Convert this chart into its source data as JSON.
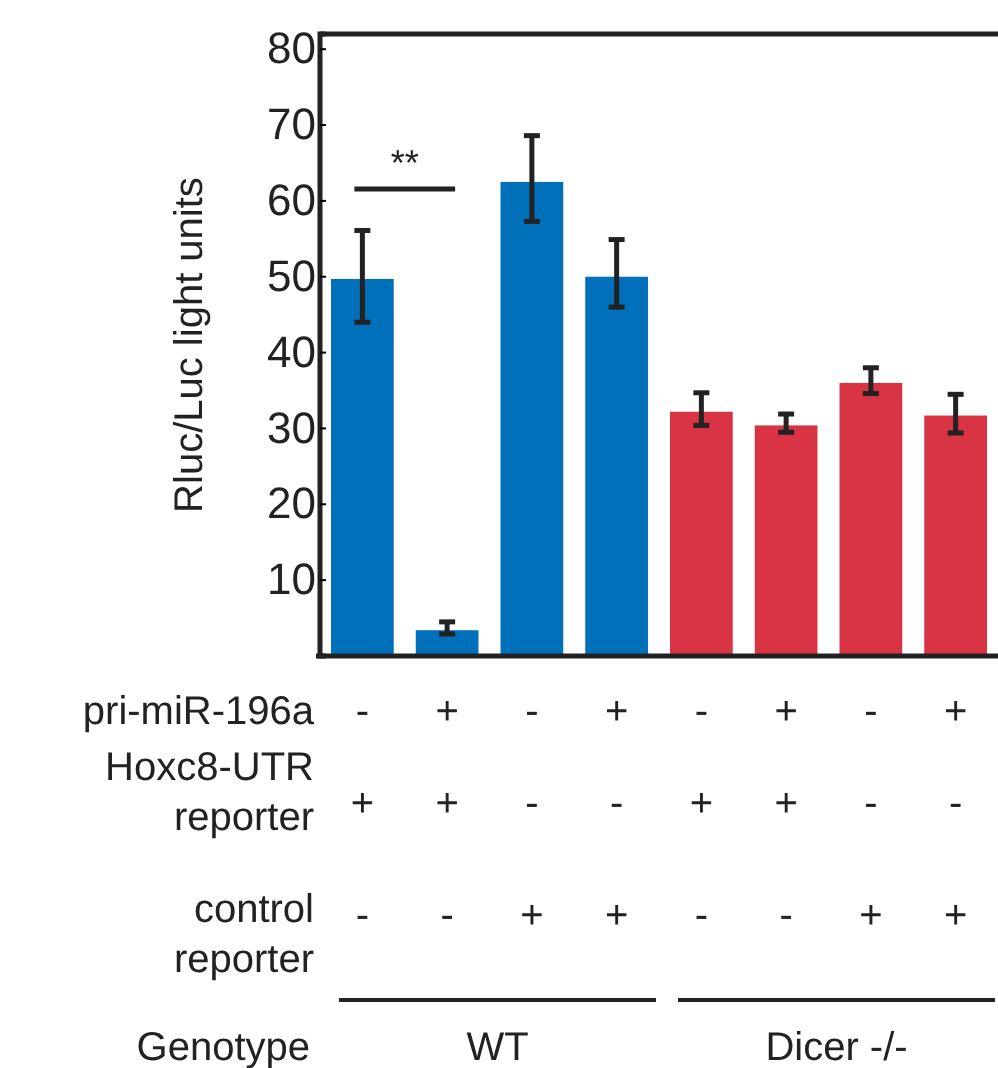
{
  "chart_data": {
    "type": "bar",
    "ylabel": "Rluc/Luc light units",
    "categories": [
      "-\n+\n-",
      "+\n+\n-",
      "-\n-\n+",
      "+\n-\n+",
      "-\n+\n-",
      "+\n+\n-",
      "-\n-\n+",
      "+\n-\n+"
    ],
    "values": [
      49.7,
      3.4,
      62.5,
      50.0,
      32.2,
      30.4,
      36.0,
      31.7
    ],
    "errors": [
      [
        44.0,
        56.1
      ],
      [
        2.9,
        4.5
      ],
      [
        57.3,
        68.6
      ],
      [
        46.0,
        54.9
      ],
      [
        30.4,
        34.7
      ],
      [
        29.5,
        31.9
      ],
      [
        34.6,
        38.0
      ],
      [
        29.4,
        34.5
      ]
    ],
    "colors": [
      "#0070bb",
      "#0070bb",
      "#0070bb",
      "#0070bb",
      "#d83444",
      "#d83444",
      "#d83444",
      "#d83444"
    ],
    "ylim": [
      0,
      82
    ],
    "yticks": [
      10,
      20,
      30,
      40,
      50,
      60,
      70,
      80
    ],
    "grid": false,
    "annotations": [
      "**",
      "pri-miR-196a",
      "Hoxc8-UTR\nreporter",
      "control\nreporter",
      "Genotype",
      "WT",
      "Dicer -/-"
    ]
  }
}
